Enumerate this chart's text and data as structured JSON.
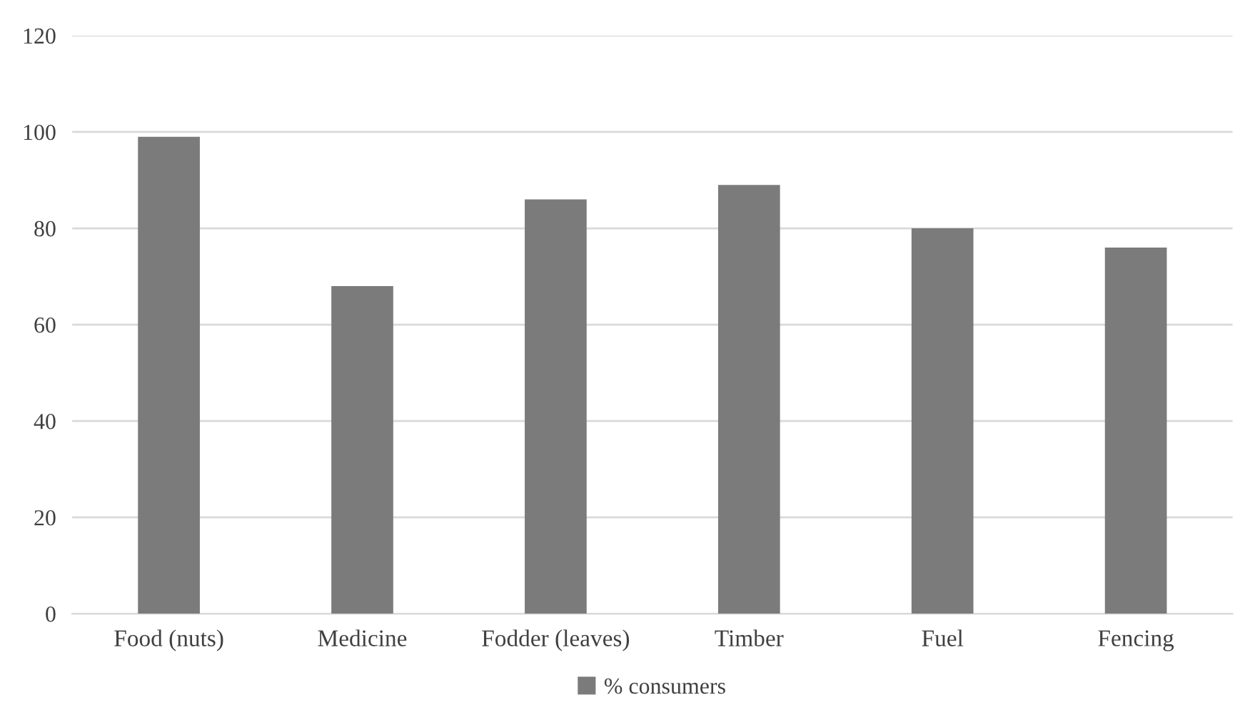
{
  "chart_data": {
    "type": "bar",
    "categories": [
      "Food (nuts)",
      "Medicine",
      "Fodder (leaves)",
      "Timber",
      "Fuel",
      "Fencing"
    ],
    "series": [
      {
        "name": "% consumers",
        "color": "#7b7b7b",
        "values": [
          99,
          68,
          86,
          89,
          80,
          76
        ]
      }
    ],
    "ylim": [
      0,
      120
    ],
    "yticks": [
      0,
      20,
      40,
      60,
      80,
      100,
      120
    ],
    "grid": "y",
    "legend": "bottom"
  }
}
